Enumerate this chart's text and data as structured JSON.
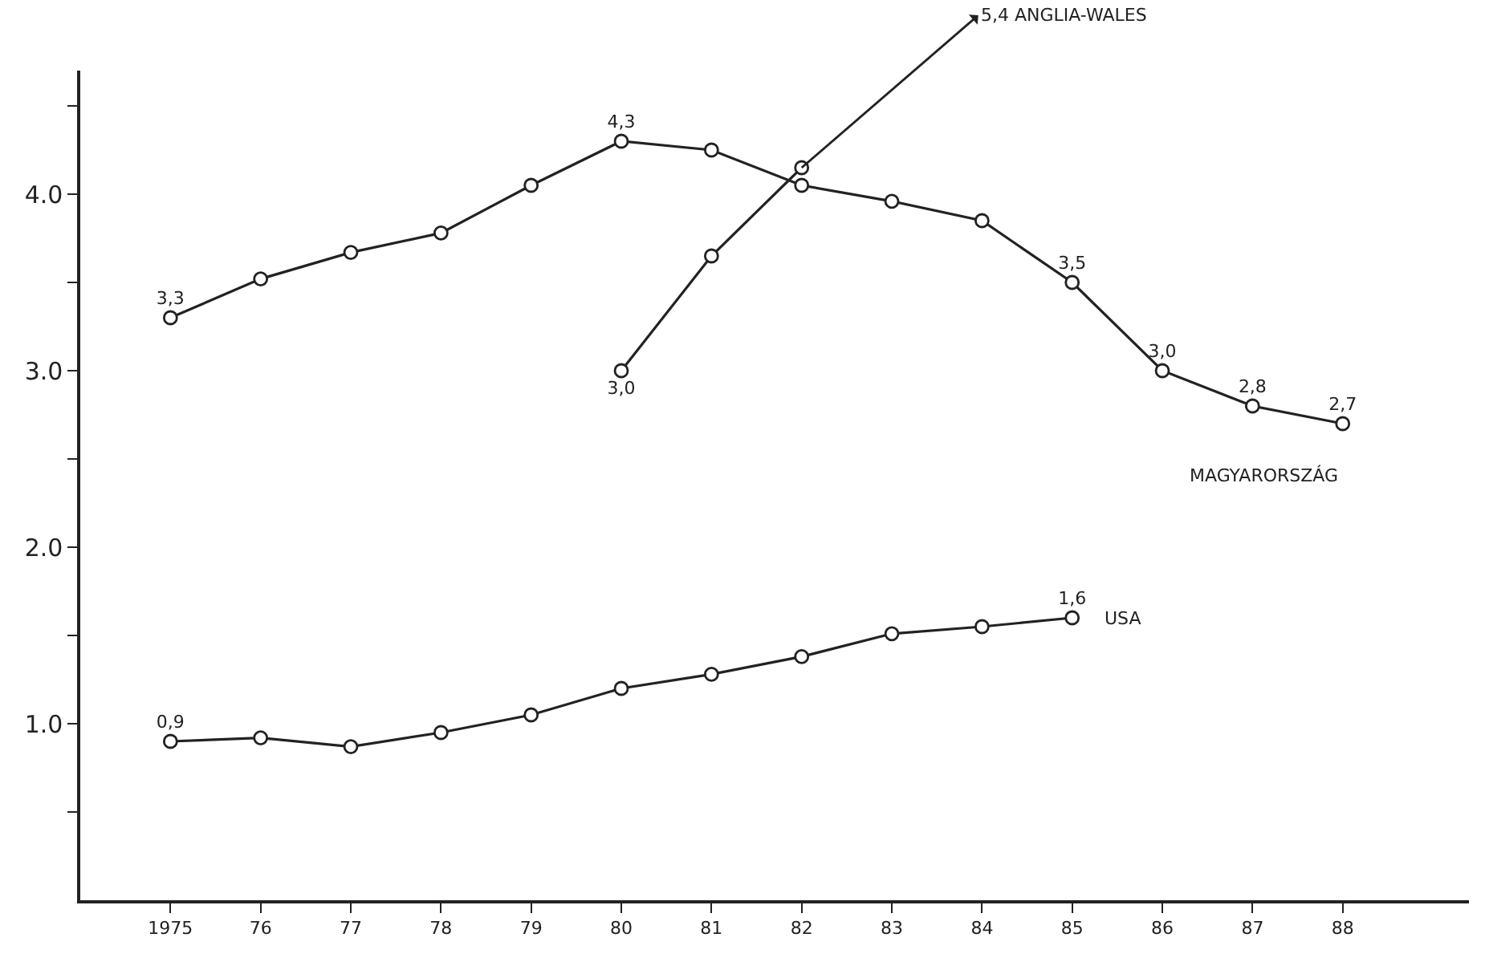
{
  "chart_data": {
    "type": "line",
    "marker": "circle",
    "line_style": "solid",
    "legend": false,
    "x": [
      1975,
      1976,
      1977,
      1978,
      1979,
      1980,
      1981,
      1982,
      1983,
      1984,
      1985,
      1986,
      1987,
      1988
    ],
    "xlim": [
      1974,
      1989.4
    ],
    "ylim": [
      0,
      4.7
    ],
    "xticks": [
      1975,
      {
        "value": 1976,
        "label": "76"
      },
      {
        "value": 1977,
        "label": "77"
      },
      {
        "value": 1978,
        "label": "78"
      },
      {
        "value": 1979,
        "label": "79"
      },
      {
        "value": 1980,
        "label": "80"
      },
      {
        "value": 1981,
        "label": "81"
      },
      {
        "value": 1982,
        "label": "82"
      },
      {
        "value": 1983,
        "label": "83"
      },
      {
        "value": 1984,
        "label": "84"
      },
      {
        "value": 1985,
        "label": "85"
      },
      {
        "value": 1986,
        "label": "86"
      },
      {
        "value": 1987,
        "label": "87"
      },
      {
        "value": 1988,
        "label": "88"
      }
    ],
    "yticks": [
      {
        "value": 0.5,
        "label": null
      },
      {
        "value": 1,
        "label": "1.0"
      },
      {
        "value": 1.5,
        "label": null
      },
      {
        "value": 2,
        "label": "2.0"
      },
      {
        "value": 2.5,
        "label": null
      },
      {
        "value": 3,
        "label": "3.0"
      },
      {
        "value": 3.5,
        "label": null
      },
      {
        "value": 4,
        "label": "4.0"
      },
      {
        "value": 4.5,
        "label": null
      }
    ],
    "series": [
      {
        "name": "MAGYARORSZÁG",
        "color": "#222222",
        "values": [
          3.3,
          3.52,
          3.67,
          3.78,
          4.05,
          4.3,
          4.25,
          4.05,
          3.96,
          3.85,
          3.5,
          3.0,
          2.8,
          2.7
        ],
        "value_labels": [
          "3,3",
          null,
          null,
          null,
          null,
          "4,3",
          null,
          null,
          null,
          null,
          "3,5",
          "3,0",
          "2,8",
          "2,7"
        ]
      },
      {
        "color": "#222222",
        "values": [
          null,
          null,
          null,
          null,
          null,
          3.0,
          3.65,
          4.15,
          null,
          null,
          null,
          null,
          null,
          null
        ],
        "value_labels": [
          null,
          null,
          null,
          null,
          null,
          "3,0",
          null,
          null,
          null,
          null,
          null,
          null,
          null,
          null
        ]
      },
      {
        "name": "USA",
        "color": "#222222",
        "values": [
          0.9,
          0.92,
          0.87,
          0.95,
          1.05,
          1.2,
          1.28,
          1.38,
          1.51,
          1.55,
          1.6,
          null,
          null,
          null
        ],
        "value_labels": [
          "0,9",
          null,
          null,
          null,
          null,
          null,
          null,
          null,
          null,
          null,
          "1,6",
          null,
          null,
          null
        ]
      }
    ],
    "annotations": [
      {
        "text": "5,4 ANGLIA-WALES",
        "x": 1982,
        "y": 4.15
      }
    ]
  }
}
